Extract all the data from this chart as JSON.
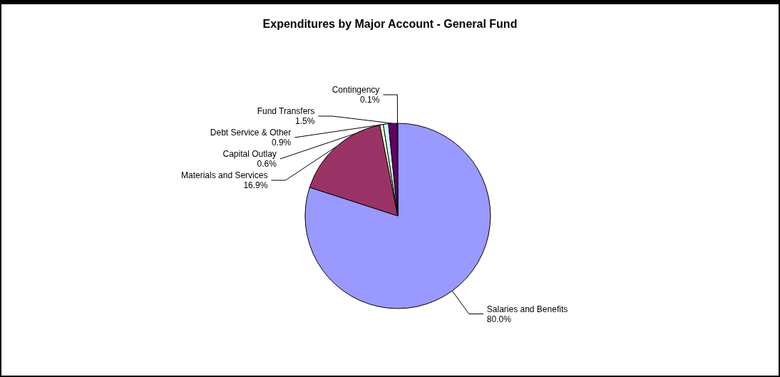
{
  "chart_data": {
    "type": "pie",
    "title": "Expenditures by Major Account - General Fund",
    "categories": [
      "Salaries and Benefits",
      "Materials and Services",
      "Capital Outlay",
      "Debt Service & Other",
      "Fund Transfers",
      "Contingency"
    ],
    "values": [
      80.0,
      16.9,
      0.6,
      0.9,
      1.5,
      0.1
    ],
    "value_labels": [
      "80.0%",
      "16.9%",
      "0.6%",
      "0.9%",
      "1.5%",
      "0.1%"
    ],
    "colors": [
      "#9999ff",
      "#993366",
      "#ffffcc",
      "#ccffff",
      "#660066",
      "#ff8080"
    ],
    "legend": false
  }
}
